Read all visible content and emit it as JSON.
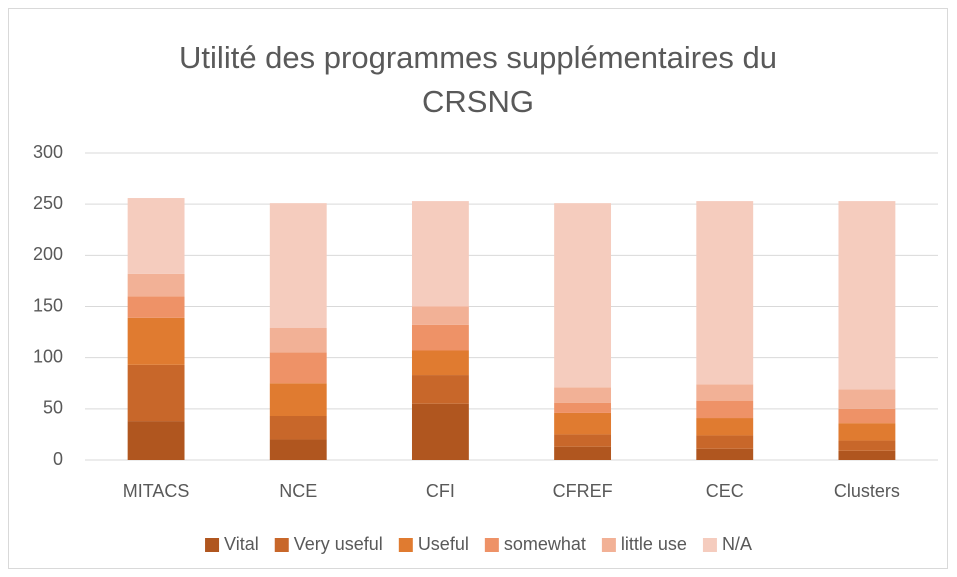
{
  "chart_data": {
    "type": "stacked_bar",
    "title": "Utilité des programmes supplémentaires du CRSNG",
    "categories": [
      "MITACS",
      "NCE",
      "CFI",
      "CFREF",
      "CEC",
      "Clusters"
    ],
    "series": [
      {
        "name": "Vital",
        "color": "#b0561f",
        "values": [
          38,
          20,
          55,
          13,
          11,
          9
        ]
      },
      {
        "name": "Very useful",
        "color": "#c8672a",
        "values": [
          55,
          23,
          28,
          12,
          13,
          10
        ]
      },
      {
        "name": "Useful",
        "color": "#e07b30",
        "values": [
          46,
          32,
          24,
          21,
          17,
          17
        ]
      },
      {
        "name": "somewhat",
        "color": "#ee9267",
        "values": [
          21,
          30,
          25,
          10,
          17,
          14
        ]
      },
      {
        "name": "little use",
        "color": "#f2b196",
        "values": [
          22,
          24,
          18,
          15,
          16,
          19
        ]
      },
      {
        "name": "N/A",
        "color": "#f5ccbe",
        "values": [
          74,
          122,
          103,
          180,
          179,
          184
        ]
      }
    ],
    "ylim": [
      0,
      300
    ],
    "yticks": [
      0,
      50,
      100,
      150,
      200,
      250,
      300
    ],
    "grid": true,
    "legend": "bottom"
  }
}
